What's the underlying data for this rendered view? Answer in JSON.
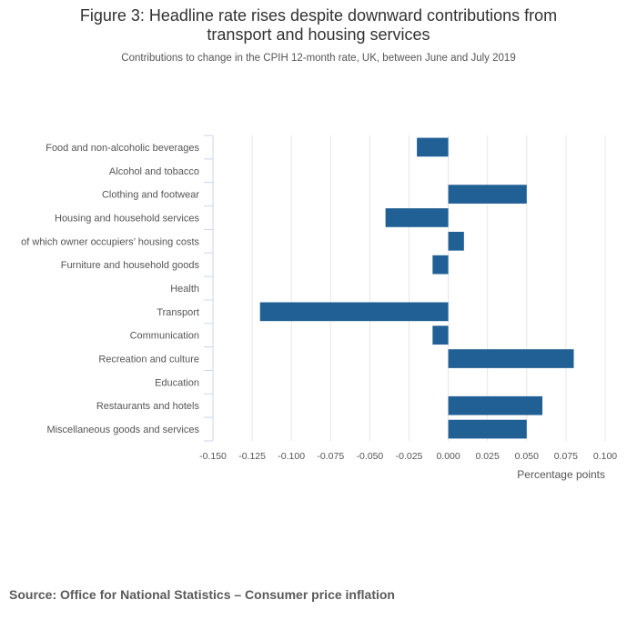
{
  "figure": {
    "title_line1": "Figure 3: Headline rate rises despite downward contributions from",
    "title_line2": "transport and housing services",
    "subtitle": "Contributions to change in the CPIH 12-month rate, UK, between June and July 2019",
    "source": "Source: Office for National Statistics – Consumer price inflation"
  },
  "colors": {
    "bar": "#206095",
    "grid": "#e6e6e6",
    "axis": "#ccd6eb",
    "text": "#555555"
  },
  "chart_data": {
    "type": "bar",
    "orientation": "horizontal",
    "title": "Figure 3: Headline rate rises despite downward contributions from transport and housing services",
    "subtitle": "Contributions to change in the CPIH 12-month rate, UK, between June and July 2019",
    "xlabel": "Percentage points",
    "ylabel": "",
    "xlim": [
      -0.15,
      0.1
    ],
    "xticks": [
      -0.15,
      -0.125,
      -0.1,
      -0.075,
      -0.05,
      -0.025,
      0,
      0.025,
      0.05,
      0.075,
      0.1
    ],
    "xtick_labels": [
      "-0.150",
      "-0.125",
      "-0.100",
      "-0.075",
      "-0.050",
      "-0.025",
      "0.000",
      "0.025",
      "0.050",
      "0.075",
      "0.100"
    ],
    "grid": true,
    "legend": "none",
    "categories": [
      "Food and non-alcoholic beverages",
      "Alcohol and tobacco",
      "Clothing and footwear",
      "Housing and household services",
      "of which owner occupiers’ housing costs",
      "Furniture and household goods",
      "Health",
      "Transport",
      "Communication",
      "Recreation and culture",
      "Education",
      "Restaurants and hotels",
      "Miscellaneous goods and services"
    ],
    "values": [
      -0.02,
      0.0,
      0.05,
      -0.04,
      0.01,
      -0.01,
      0.0,
      -0.12,
      -0.01,
      0.08,
      0.0,
      0.06,
      0.05
    ]
  }
}
